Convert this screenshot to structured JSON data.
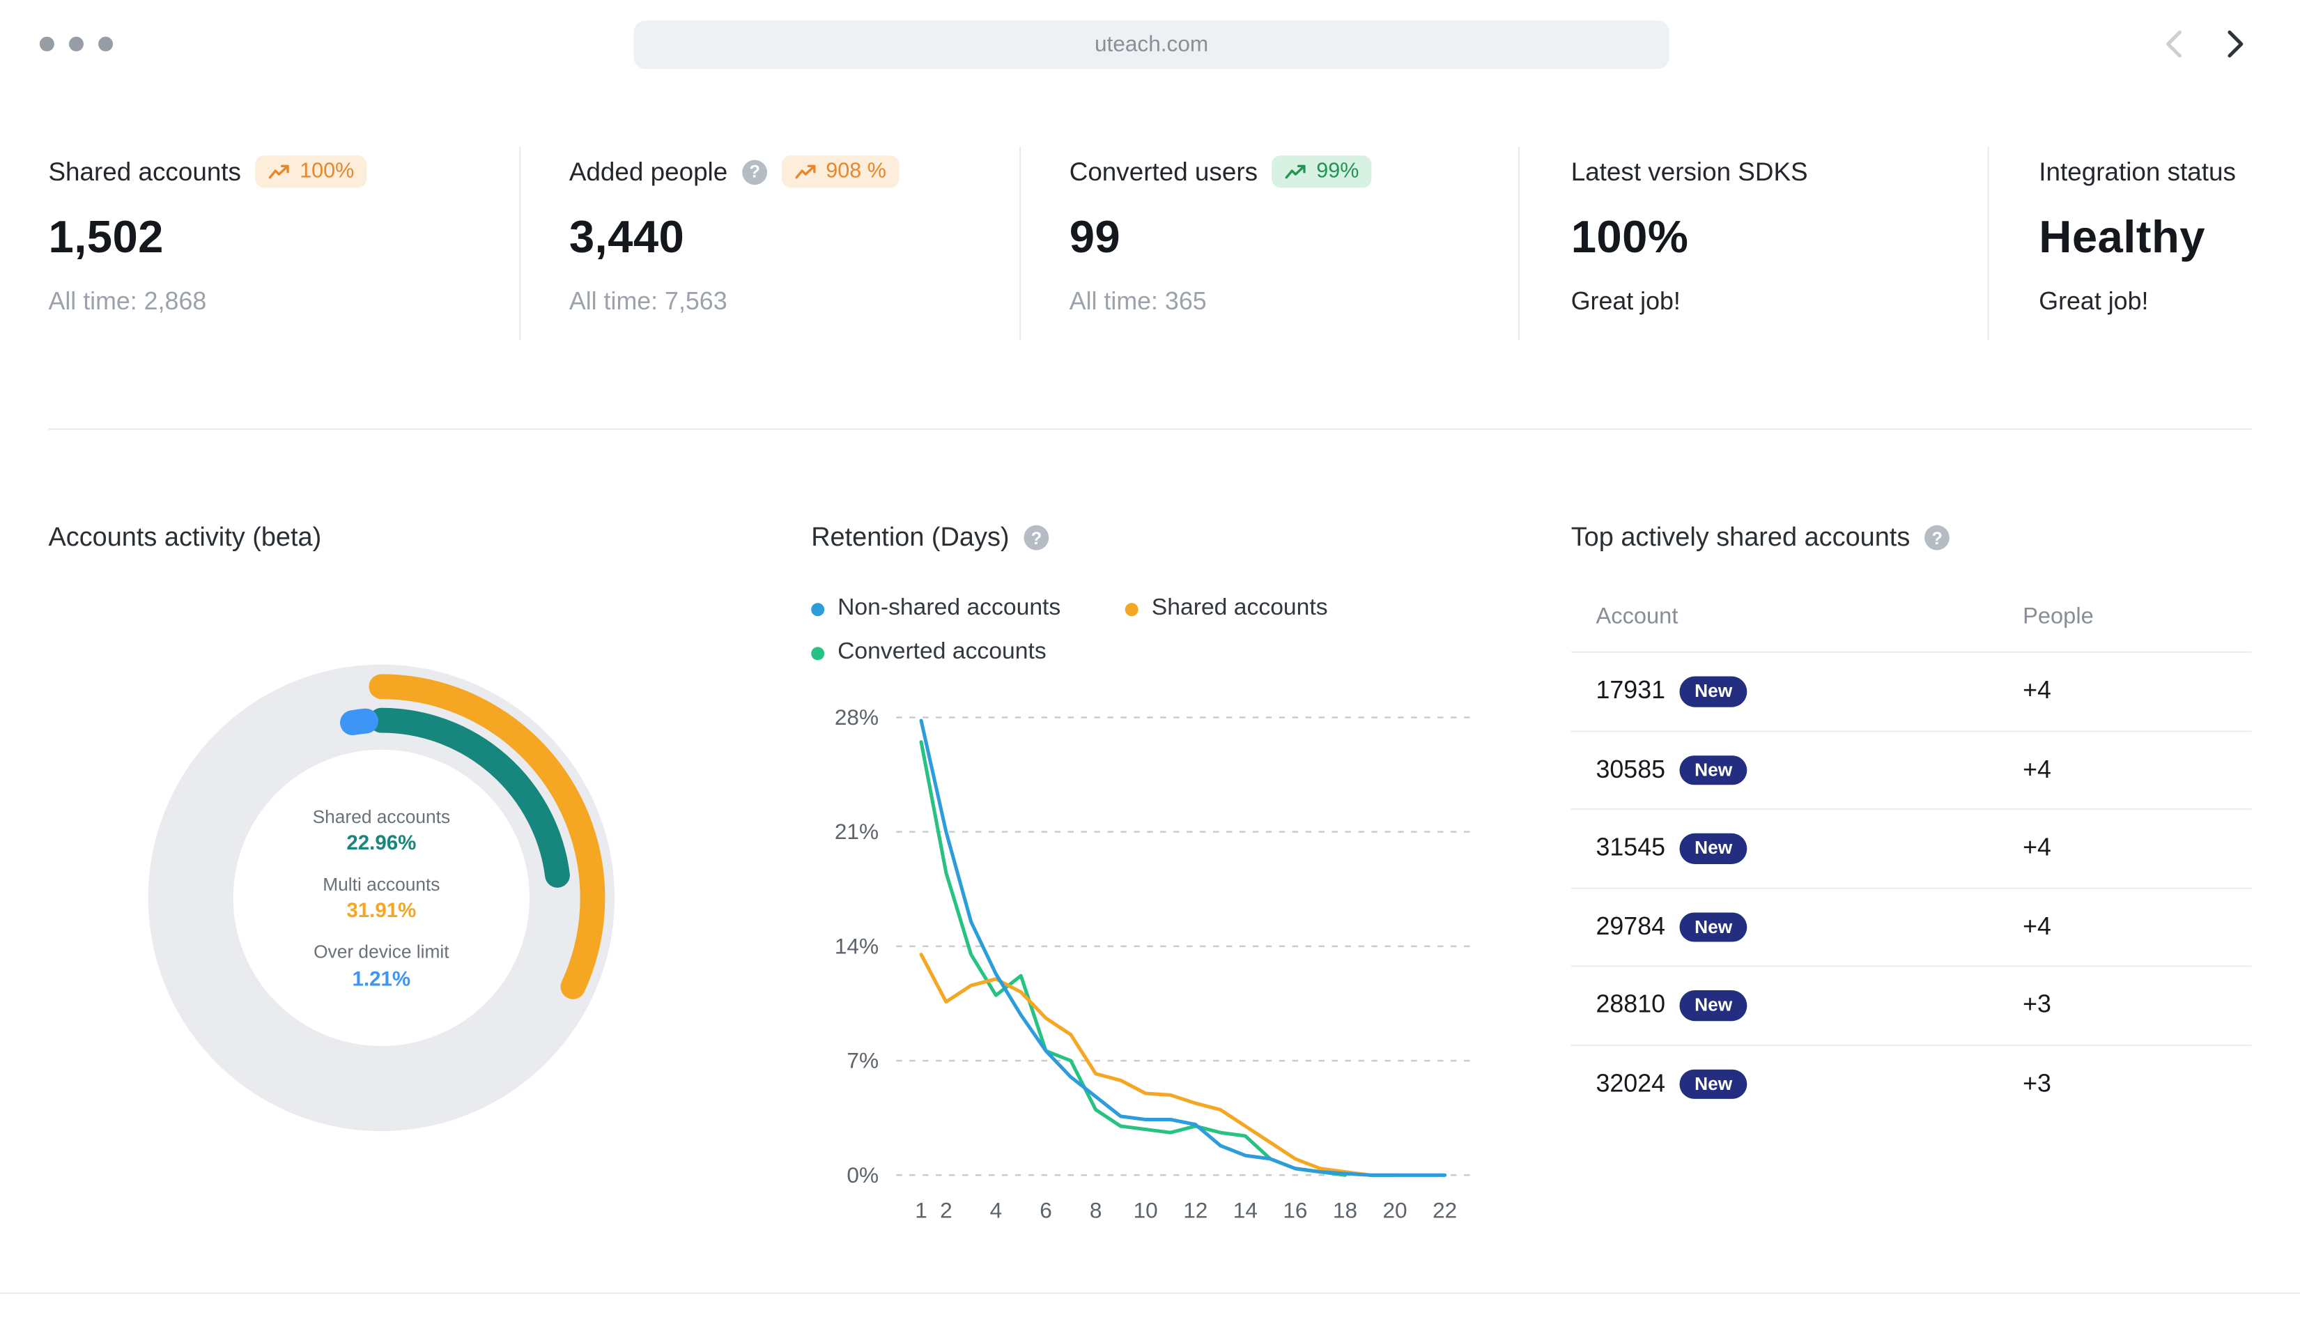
{
  "browser": {
    "url": "uteach.com"
  },
  "icons": {
    "help": "?"
  },
  "stats": [
    {
      "title": "Shared accounts",
      "badge": "100%",
      "badge_type": "orange",
      "value": "1,502",
      "subtext": "All time: 2,868"
    },
    {
      "title": "Added people",
      "badge": "908 %",
      "badge_type": "orange",
      "value": "3,440",
      "subtext": "All time: 7,563"
    },
    {
      "title": "Converted users",
      "badge": "99%",
      "badge_type": "green",
      "value": "99",
      "subtext": "All time: 365"
    },
    {
      "title": "Latest version SDKS",
      "value": "100%",
      "subtext": "Great job!"
    },
    {
      "title": "Integration status",
      "value": "Healthy",
      "subtext": "Great job!"
    }
  ],
  "colors": {
    "badge_orange_text": "#E8872A",
    "badge_orange_bg": "#FCEEDB",
    "badge_green_text": "#219653",
    "badge_green_bg": "#D7F2E2",
    "new_badge_bg": "#242E81",
    "donut_ring_bg": "#E9EBEE"
  },
  "chart_data": [
    {
      "id": "accounts-activity-donut",
      "type": "donut",
      "title": "Accounts activity (beta)",
      "segments": [
        {
          "label": "Shared accounts",
          "value": 22.96,
          "display": "22.96%",
          "color": "#17867C"
        },
        {
          "label": "Multi accounts",
          "value": 31.91,
          "display": "31.91%",
          "color": "#F5A623"
        },
        {
          "label": "Over device limit",
          "value": 1.21,
          "display": "1.21%",
          "color": "#3D96F5"
        }
      ]
    },
    {
      "id": "retention-line",
      "type": "line",
      "title": "Retention (Days)",
      "xlabel": "",
      "ylabel": "",
      "xlim": [
        1,
        22
      ],
      "ylim": [
        0,
        28
      ],
      "grid": "dashed-horizontal",
      "legend_position": "top",
      "x_ticks": [
        1,
        2,
        4,
        6,
        8,
        10,
        12,
        14,
        16,
        18,
        20,
        22
      ],
      "y_ticks": [
        {
          "value": 0,
          "label": "0%"
        },
        {
          "value": 7,
          "label": "7%"
        },
        {
          "value": 14,
          "label": "14%"
        },
        {
          "value": 21,
          "label": "21%"
        },
        {
          "value": 28,
          "label": "28%"
        }
      ],
      "x_start_day": 1,
      "series": [
        {
          "name": "Non-shared accounts",
          "color": "#2D9CDB",
          "values": [
            27.8,
            21.0,
            15.5,
            12.3,
            9.8,
            7.6,
            6.0,
            4.8,
            3.6,
            3.4,
            3.4,
            3.1,
            1.8,
            1.2,
            1.0,
            0.4,
            0.2,
            0.1,
            0,
            0,
            0,
            0
          ]
        },
        {
          "name": "Shared accounts",
          "color": "#F5A623",
          "values": [
            13.5,
            10.6,
            11.6,
            12.0,
            11.2,
            9.6,
            8.6,
            6.2,
            5.8,
            5.0,
            4.9,
            4.4,
            4.0,
            3.0,
            2.0,
            1.0,
            0.4,
            0.2,
            0,
            0
          ]
        },
        {
          "name": "Converted accounts",
          "color": "#27C281",
          "values": [
            26.5,
            18.5,
            13.5,
            11.0,
            12.2,
            7.6,
            7.0,
            4.0,
            3.0,
            2.8,
            2.6,
            3.0,
            2.6,
            2.4,
            1.0,
            0.4,
            0.2,
            0
          ]
        }
      ]
    }
  ],
  "top_accounts": {
    "title": "Top actively shared accounts",
    "columns": [
      "Account",
      "People"
    ],
    "rows": [
      {
        "account": "17931",
        "badge": "New",
        "people": "+4"
      },
      {
        "account": "30585",
        "badge": "New",
        "people": "+4"
      },
      {
        "account": "31545",
        "badge": "New",
        "people": "+4"
      },
      {
        "account": "29784",
        "badge": "New",
        "people": "+4"
      },
      {
        "account": "28810",
        "badge": "New",
        "people": "+3"
      },
      {
        "account": "32024",
        "badge": "New",
        "people": "+3"
      }
    ]
  }
}
